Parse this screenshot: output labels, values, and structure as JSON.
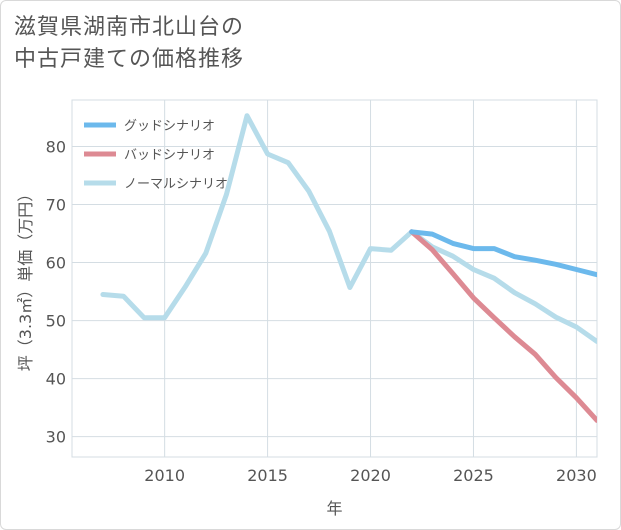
{
  "title_line1": "滋賀県湖南市北山台の",
  "title_line2": "中古戸建ての価格推移",
  "chart_data": {
    "type": "line",
    "xlabel": "年",
    "ylabel": "坪（3.3㎡）単価（万円）",
    "xlim": [
      2005.5,
      2031
    ],
    "ylim": [
      26.5,
      88
    ],
    "xticks": [
      2010,
      2015,
      2020,
      2025,
      2030
    ],
    "yticks": [
      30,
      40,
      50,
      60,
      70,
      80
    ],
    "grid": true,
    "legend_position": "top-left",
    "series": [
      {
        "name": "グッドシナリオ",
        "color": "#6cb9ec",
        "x": [
          2022,
          2023,
          2024,
          2025,
          2026,
          2027,
          2028,
          2029,
          2030,
          2031
        ],
        "values": [
          65.3,
          64.9,
          63.3,
          62.4,
          62.4,
          61.0,
          60.4,
          59.7,
          58.8,
          57.9
        ]
      },
      {
        "name": "バッドシナリオ",
        "color": "#dd8a93",
        "x": [
          2022,
          2023,
          2024,
          2025,
          2026,
          2027,
          2028,
          2029,
          2030,
          2031
        ],
        "values": [
          65.3,
          62.2,
          58.1,
          53.9,
          50.5,
          47.2,
          44.2,
          40.2,
          36.7,
          32.8
        ]
      },
      {
        "name": "ノーマルシナリオ",
        "color": "#b6dcea",
        "x": [
          2007,
          2008,
          2009,
          2010,
          2011,
          2012,
          2013,
          2014,
          2015,
          2016,
          2017,
          2018,
          2019,
          2020,
          2021,
          2022,
          2023,
          2024,
          2025,
          2026,
          2027,
          2028,
          2029,
          2030,
          2031
        ],
        "values": [
          54.5,
          54.2,
          50.5,
          50.5,
          55.8,
          61.6,
          71.7,
          85.3,
          78.7,
          77.2,
          72.3,
          65.4,
          55.7,
          62.4,
          62.1,
          65.3,
          62.7,
          61.1,
          58.8,
          57.3,
          54.8,
          52.9,
          50.6,
          48.9,
          46.4
        ]
      }
    ]
  }
}
